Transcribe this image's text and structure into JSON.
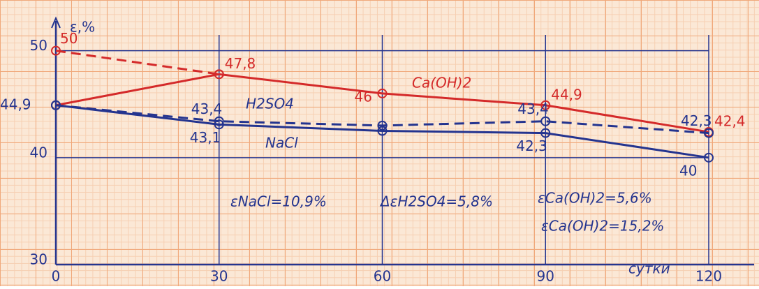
{
  "chart_data": {
    "type": "line",
    "y_label": "ε,%",
    "x_label": "сутки",
    "x": [
      0,
      30,
      60,
      90,
      120
    ],
    "xlim": [
      0,
      120
    ],
    "xticks": [
      0,
      30,
      60,
      90,
      120
    ],
    "ylim": [
      30,
      52
    ],
    "yticks": [
      30,
      40,
      50
    ],
    "grid": true,
    "series": [
      {
        "name": "Ca(OH)2",
        "color": "#d42a2a",
        "dashed": false,
        "values": [
          44.9,
          47.8,
          46,
          44.9,
          42.4
        ],
        "value_labels": [
          null,
          "47,8",
          "46",
          "44,9",
          "42,4"
        ]
      },
      {
        "color": "#d42a2a",
        "dashed": true,
        "values": [
          50,
          47.8,
          null,
          null,
          null
        ],
        "value_labels": [
          "50",
          null,
          null,
          null,
          null
        ]
      },
      {
        "name": "H2SO4",
        "color": "#24348f",
        "dashed": true,
        "values": [
          44.9,
          43.4,
          43,
          43.4,
          42.3
        ],
        "value_labels": [
          "44,9",
          "43,4",
          null,
          "43,4",
          "42,3"
        ]
      },
      {
        "name": "NaCl",
        "color": "#24348f",
        "dashed": false,
        "values": [
          44.9,
          43.1,
          42.5,
          42.3,
          40
        ],
        "value_labels": [
          null,
          "43,1",
          null,
          "42,3",
          "40"
        ]
      }
    ],
    "annotations": [
      "εNaCl=10,9%",
      "ΔεH2SO4=5,8%",
      "εCa(OH)2=5,6%",
      "εCa(OH)2=15,2%"
    ]
  }
}
